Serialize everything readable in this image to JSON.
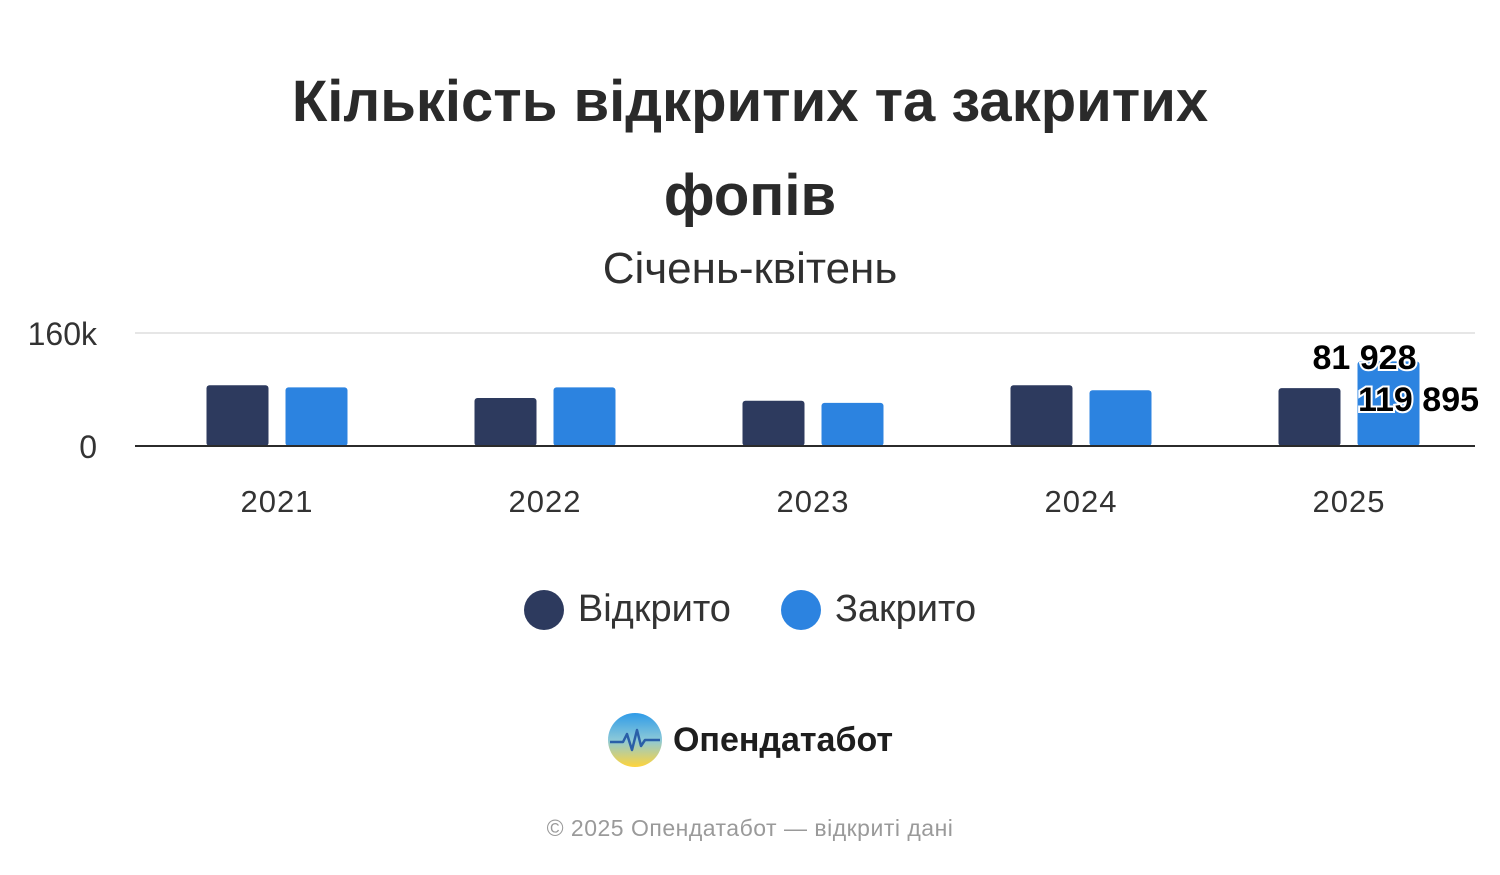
{
  "title_lines": [
    "Кількість відкритих та закритих",
    "фопів"
  ],
  "subtitle": "Січень-квітень",
  "brand": {
    "name": "Опендатабот"
  },
  "footer": "© 2025 Опендатабот — відкриті дані",
  "colors": {
    "opened": "#2d3a5e",
    "closed": "#2c83e0",
    "axis": "#2b2b2b",
    "grid": "#e6e6e6"
  },
  "chart_data": {
    "type": "bar",
    "categories": [
      "2021",
      "2022",
      "2023",
      "2024",
      "2025"
    ],
    "series": [
      {
        "name": "Відкрито",
        "values": [
          86000,
          68000,
          64000,
          86000,
          81928
        ]
      },
      {
        "name": "Закрито",
        "values": [
          83000,
          83000,
          61000,
          79000,
          119895
        ]
      }
    ],
    "ylim": [
      0,
      160000
    ],
    "yticks": [
      0,
      160000
    ],
    "ytick_labels": [
      "0",
      "160k"
    ],
    "data_labels": [
      {
        "series": 0,
        "category": "2025",
        "text": "81 928"
      },
      {
        "series": 1,
        "category": "2025",
        "text": "119 895"
      }
    ],
    "legend": "bottom",
    "grid": true,
    "xlabel": "",
    "ylabel": ""
  }
}
